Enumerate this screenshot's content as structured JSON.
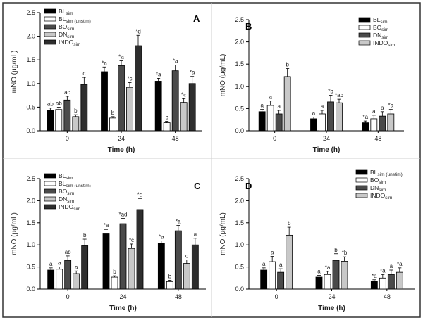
{
  "figure": {
    "border_color": "#333333",
    "series_colors": {
      "BL": "#000000",
      "BL_unstim": "#ffffff",
      "BO": "#4a4a4a",
      "DN": "#c8c8c8",
      "INDO": "#2e2e2e"
    }
  },
  "chart_data": [
    {
      "panel_letter": "A",
      "type": "bar",
      "ylabel": "mNO (µg/mL)",
      "xlabel": "Time (h)",
      "ylim": [
        0,
        2.5
      ],
      "yticks": [
        "0.0",
        "0.5",
        "1.0",
        "1.5",
        "2.0",
        "2.5"
      ],
      "categories": [
        "0",
        "24",
        "48"
      ],
      "legend_position": "top-left",
      "series": [
        {
          "key": "BL",
          "name": "BL",
          "sub": "sim",
          "suffix": "",
          "color": "#000000",
          "values": [
            0.43,
            1.25,
            1.05
          ],
          "errors": [
            0.05,
            0.1,
            0.06
          ],
          "labels": [
            "ab",
            "*a",
            "*a"
          ]
        },
        {
          "key": "BL_unstim",
          "name": "BL",
          "sub": "sim",
          "suffix": " (unstim)",
          "color": "#ffffff",
          "values": [
            0.45,
            0.27,
            0.17
          ],
          "errors": [
            0.05,
            0.03,
            0.03
          ],
          "labels": [
            "ab",
            "b",
            "b"
          ]
        },
        {
          "key": "BO",
          "name": "BO",
          "sub": "sim",
          "suffix": "",
          "color": "#4a4a4a",
          "values": [
            0.65,
            1.38,
            1.27
          ],
          "errors": [
            0.08,
            0.1,
            0.12
          ],
          "labels": [
            "ac",
            "*a",
            "*a"
          ]
        },
        {
          "key": "DN",
          "name": "DN",
          "sub": "sim",
          "suffix": "",
          "color": "#c8c8c8",
          "values": [
            0.3,
            0.92,
            0.6
          ],
          "errors": [
            0.04,
            0.1,
            0.08
          ],
          "labels": [
            "b",
            "*c",
            "*c"
          ]
        },
        {
          "key": "INDO",
          "name": "INDO",
          "sub": "sim",
          "suffix": "",
          "color": "#2e2e2e",
          "values": [
            0.98,
            1.8,
            1.0
          ],
          "errors": [
            0.15,
            0.22,
            0.15
          ],
          "labels": [
            "c",
            "*d",
            "*a"
          ]
        }
      ]
    },
    {
      "panel_letter": "B",
      "type": "bar",
      "ylabel": "mNO (µg/mL)",
      "xlabel": "Time (h)",
      "ylim": [
        0,
        2.5
      ],
      "yticks": [
        "0.0",
        "0.5",
        "1.0",
        "1.5",
        "2.0",
        "2.5"
      ],
      "categories": [
        "0",
        "24",
        "48"
      ],
      "legend_position": "top-right",
      "series": [
        {
          "key": "BL",
          "name": "BL",
          "sub": "sim",
          "suffix": "",
          "color": "#000000",
          "values": [
            0.43,
            0.27,
            0.18
          ],
          "errors": [
            0.05,
            0.04,
            0.04
          ],
          "labels": [
            "a",
            "a",
            "*a"
          ]
        },
        {
          "key": "BO",
          "name": "BO",
          "sub": "sim",
          "suffix": "",
          "color": "#ffffff",
          "values": [
            0.57,
            0.38,
            0.27
          ],
          "errors": [
            0.1,
            0.08,
            0.08
          ],
          "labels": [
            "a",
            "a",
            "a"
          ]
        },
        {
          "key": "DN",
          "name": "DN",
          "sub": "sim",
          "suffix": "",
          "color": "#4a4a4a",
          "values": [
            0.38,
            0.65,
            0.33
          ],
          "errors": [
            0.08,
            0.15,
            0.1
          ],
          "labels": [
            "a",
            "*b",
            "a"
          ]
        },
        {
          "key": "INDO",
          "name": "INDO",
          "sub": "sim",
          "suffix": "",
          "color": "#c8c8c8",
          "values": [
            1.22,
            0.63,
            0.38
          ],
          "errors": [
            0.18,
            0.08,
            0.1
          ],
          "labels": [
            "b",
            "*ab",
            "*a"
          ]
        }
      ]
    },
    {
      "panel_letter": "C",
      "type": "bar",
      "ylabel": "mNO (µg/mL)",
      "xlabel": "Time (h)",
      "ylim": [
        0,
        2.5
      ],
      "yticks": [
        "0.0",
        "0.5",
        "1.0",
        "1.5",
        "2.0",
        "2.5"
      ],
      "categories": [
        "0",
        "24",
        "48"
      ],
      "legend_position": "top-left",
      "series": [
        {
          "key": "BL",
          "name": "BL",
          "sub": "sim",
          "suffix": "",
          "color": "#000000",
          "values": [
            0.43,
            1.25,
            1.03
          ],
          "errors": [
            0.05,
            0.1,
            0.06
          ],
          "labels": [
            "a",
            "*a",
            "*a"
          ]
        },
        {
          "key": "BL_unstim",
          "name": "BL",
          "sub": "sim",
          "suffix": " (unstim)",
          "color": "#ffffff",
          "values": [
            0.45,
            0.27,
            0.17
          ],
          "errors": [
            0.05,
            0.03,
            0.03
          ],
          "labels": [
            "a",
            "b",
            "b"
          ]
        },
        {
          "key": "BO",
          "name": "BO",
          "sub": "sim",
          "suffix": "",
          "color": "#4a4a4a",
          "values": [
            0.65,
            1.48,
            1.32
          ],
          "errors": [
            0.1,
            0.12,
            0.12
          ],
          "labels": [
            "ab",
            "*ad",
            "*a"
          ]
        },
        {
          "key": "DN",
          "name": "DN",
          "sub": "sim",
          "suffix": "",
          "color": "#c8c8c8",
          "values": [
            0.35,
            0.92,
            0.58
          ],
          "errors": [
            0.06,
            0.1,
            0.08
          ],
          "labels": [
            "a",
            "*c",
            "c"
          ]
        },
        {
          "key": "INDO",
          "name": "INDO",
          "sub": "sim",
          "suffix": "",
          "color": "#2e2e2e",
          "values": [
            0.98,
            1.8,
            1.0
          ],
          "errors": [
            0.15,
            0.25,
            0.15
          ],
          "labels": [
            "b",
            "*d",
            "a"
          ]
        }
      ]
    },
    {
      "panel_letter": "D",
      "type": "bar",
      "ylabel": "mNO (µg/mL)",
      "xlabel": "Time (h)",
      "ylim": [
        0,
        2.5
      ],
      "yticks": [
        "0.0",
        "0.5",
        "1.0",
        "1.5",
        "2.0",
        "2.5"
      ],
      "categories": [
        "0",
        "24",
        "48"
      ],
      "legend_position": "top-right",
      "series": [
        {
          "key": "BL_unstim",
          "name": "BL",
          "sub": "sim",
          "suffix": " (unstim)",
          "color": "#000000",
          "values": [
            0.43,
            0.27,
            0.17
          ],
          "errors": [
            0.05,
            0.04,
            0.04
          ],
          "labels": [
            "a",
            "a",
            "*a"
          ]
        },
        {
          "key": "BO",
          "name": "BO",
          "sub": "sim",
          "suffix": "",
          "color": "#ffffff",
          "values": [
            0.62,
            0.33,
            0.25
          ],
          "errors": [
            0.12,
            0.07,
            0.08
          ],
          "labels": [
            "a",
            "*a",
            "*a"
          ]
        },
        {
          "key": "DN",
          "name": "DN",
          "sub": "sim",
          "suffix": "",
          "color": "#4a4a4a",
          "values": [
            0.38,
            0.65,
            0.33
          ],
          "errors": [
            0.08,
            0.15,
            0.1
          ],
          "labels": [
            "a",
            "b",
            "a"
          ]
        },
        {
          "key": "INDO",
          "name": "INDO",
          "sub": "sim",
          "suffix": "",
          "color": "#c8c8c8",
          "values": [
            1.22,
            0.63,
            0.38
          ],
          "errors": [
            0.18,
            0.1,
            0.1
          ],
          "labels": [
            "b",
            "*b",
            "*a"
          ]
        }
      ]
    }
  ]
}
